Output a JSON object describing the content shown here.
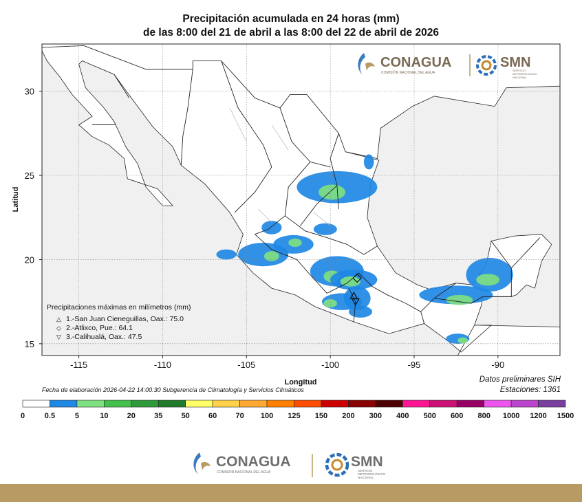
{
  "title": {
    "line1": "Precipitación acumulada en 24 horas (mm)",
    "line2": "de las 8:00 del 21 de abril a las 8:00 del 22 de abril de 2026"
  },
  "axes": {
    "xlabel": "Longitud",
    "ylabel": "Latitud",
    "x_ticks": [
      "-115",
      "-110",
      "-105",
      "-100",
      "-95",
      "-90"
    ],
    "y_ticks": [
      "30",
      "25",
      "20",
      "15"
    ],
    "x_range": [
      -117.2,
      -86.3
    ],
    "y_range": [
      14.3,
      32.8
    ]
  },
  "logos": {
    "conagua": "CONAGUA",
    "conagua_sub": "COMISIÓN NACIONAL DEL AGUA",
    "smn": "SMN",
    "smn_sub1": "SERVICIO",
    "smn_sub2": "METEOROLÓGICO",
    "smn_sub3": "NACIONAL"
  },
  "max_precip": {
    "title": "Precipitaciones máximas en milímetros (mm)",
    "items": [
      {
        "symbol": "△",
        "text": "1.-San Juan Cieneguillas, Oax.: 75.0",
        "lon": -98.6,
        "lat": 17.85
      },
      {
        "symbol": "◇",
        "text": "2.-Atlixco, Pue.: 64.1",
        "lon": -98.4,
        "lat": 18.9
      },
      {
        "symbol": "▽",
        "text": "3.-Calihualá, Oax.: 47.5",
        "lon": -98.5,
        "lat": 17.5
      }
    ]
  },
  "fecha": "Fecha de elaboración 2026-04-22 14:00:30 Subgerencia de Climatología y Servicios Climáticos",
  "datos": "Datos preliminares SIH",
  "estaciones": "Estaciones:  1361",
  "colors": {
    "land": "#ffffff",
    "outside": "#f0f0f0",
    "band_0_5": "#1e88e5",
    "band_5_10": "#7ee081",
    "band_10_20": "#45c04d",
    "footer_band": "#b89a63"
  },
  "scale": {
    "labels": [
      "0",
      "0.5",
      "5",
      "10",
      "20",
      "35",
      "50",
      "60",
      "70",
      "100",
      "125",
      "150",
      "200",
      "300",
      "400",
      "500",
      "600",
      "800",
      "1000",
      "1200",
      "1500"
    ],
    "colors": [
      "#ffffff",
      "#1e88e5",
      "#7ee081",
      "#45c04d",
      "#2f9a3a",
      "#1f7a2b",
      "#ffff66",
      "#ffd24a",
      "#ffa833",
      "#ff8000",
      "#ff4d00",
      "#cc0000",
      "#8b0000",
      "#4d0000",
      "#ff1493",
      "#cc1177",
      "#990066",
      "#ee55ee",
      "#bb44cc",
      "#7a3fa0",
      "#4a2a8a"
    ]
  },
  "rain_areas": [
    {
      "lon": -99.6,
      "lat": 24.3,
      "level": 1,
      "rx": 2.4,
      "ry": 0.95
    },
    {
      "lon": -99.9,
      "lat": 24.0,
      "level": 2,
      "rx": 0.8,
      "ry": 0.45
    },
    {
      "lon": -104.0,
      "lat": 20.3,
      "level": 1,
      "rx": 1.5,
      "ry": 0.7
    },
    {
      "lon": -103.5,
      "lat": 20.2,
      "level": 2,
      "rx": 0.45,
      "ry": 0.3
    },
    {
      "lon": -102.2,
      "lat": 20.9,
      "level": 1,
      "rx": 1.2,
      "ry": 0.55
    },
    {
      "lon": -102.1,
      "lat": 21.0,
      "level": 2,
      "rx": 0.4,
      "ry": 0.25
    },
    {
      "lon": -103.5,
      "lat": 21.9,
      "level": 1,
      "rx": 0.6,
      "ry": 0.4
    },
    {
      "lon": -100.3,
      "lat": 21.8,
      "level": 1,
      "rx": 0.7,
      "ry": 0.35
    },
    {
      "lon": -99.6,
      "lat": 19.3,
      "level": 1,
      "rx": 1.6,
      "ry": 0.9
    },
    {
      "lon": -99.9,
      "lat": 19.0,
      "level": 2,
      "rx": 0.5,
      "ry": 0.35
    },
    {
      "lon": -98.6,
      "lat": 18.8,
      "level": 1,
      "rx": 1.4,
      "ry": 0.6
    },
    {
      "lon": -98.8,
      "lat": 18.7,
      "level": 2,
      "rx": 0.6,
      "ry": 0.3
    },
    {
      "lon": -99.3,
      "lat": 17.5,
      "level": 1,
      "rx": 1.2,
      "ry": 0.5
    },
    {
      "lon": -100.0,
      "lat": 17.4,
      "level": 2,
      "rx": 0.4,
      "ry": 0.25
    },
    {
      "lon": -98.4,
      "lat": 17.7,
      "level": 1,
      "rx": 0.8,
      "ry": 0.7
    },
    {
      "lon": -98.2,
      "lat": 16.9,
      "level": 1,
      "rx": 0.7,
      "ry": 0.35
    },
    {
      "lon": -90.5,
      "lat": 19.1,
      "level": 1,
      "rx": 1.4,
      "ry": 1.0
    },
    {
      "lon": -90.6,
      "lat": 18.8,
      "level": 2,
      "rx": 0.7,
      "ry": 0.35
    },
    {
      "lon": -92.5,
      "lat": 17.9,
      "level": 1,
      "rx": 2.2,
      "ry": 0.55
    },
    {
      "lon": -92.3,
      "lat": 17.6,
      "level": 2,
      "rx": 0.8,
      "ry": 0.3
    },
    {
      "lon": -92.4,
      "lat": 15.3,
      "level": 1,
      "rx": 0.7,
      "ry": 0.3
    },
    {
      "lon": -92.1,
      "lat": 15.2,
      "level": 2,
      "rx": 0.3,
      "ry": 0.18
    },
    {
      "lon": -97.7,
      "lat": 25.8,
      "level": 1,
      "rx": 0.3,
      "ry": 0.45
    },
    {
      "lon": -106.2,
      "lat": 20.3,
      "level": 1,
      "rx": 0.6,
      "ry": 0.3
    }
  ]
}
